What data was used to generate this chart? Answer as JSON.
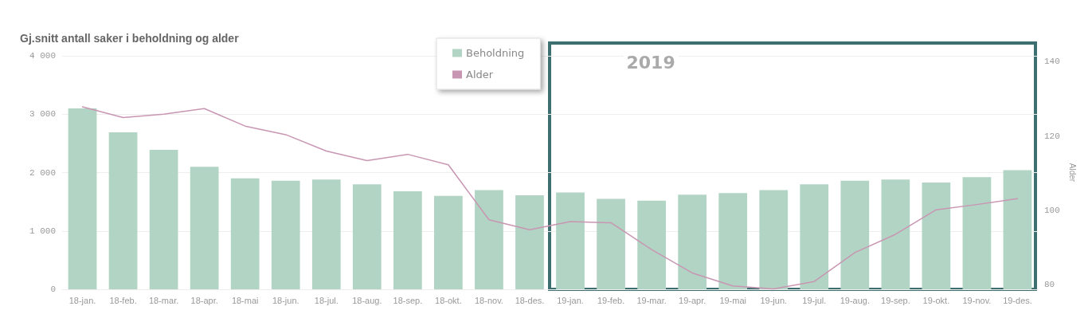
{
  "chart_data": {
    "type": "bar",
    "title": "Gj.snitt antall saker i beholdning og alder",
    "y2label": "Alder",
    "categories": [
      "18-jan.",
      "18-feb.",
      "18-mar.",
      "18-apr.",
      "18-mai",
      "18-jun.",
      "18-jul.",
      "18-aug.",
      "18-sep.",
      "18-okt.",
      "18-nov.",
      "18-des.",
      "19-jan.",
      "19-feb.",
      "19-mar.",
      "19-apr.",
      "19-mai",
      "19-jun.",
      "19-jul.",
      "19-aug.",
      "19-sep.",
      "19-okt.",
      "19-nov.",
      "19-des."
    ],
    "series": [
      {
        "name": "Beholdning",
        "color": "#b2d4c4",
        "values": [
          3100,
          2690,
          2390,
          2100,
          1900,
          1860,
          1880,
          1800,
          1680,
          1600,
          1700,
          1610,
          1660,
          1550,
          1520,
          1620,
          1650,
          1700,
          1800,
          1860,
          1880,
          1830,
          1920,
          2040
        ]
      },
      {
        "name": "Alder",
        "type": "line",
        "axis": "y2",
        "color": "#c896b2",
        "values": [
          127.9,
          125.0,
          125.9,
          127.4,
          122.7,
          120.4,
          116.0,
          113.4,
          115.1,
          112.3,
          97.5,
          94.8,
          97.0,
          96.7,
          89.5,
          83.2,
          79.7,
          78.9,
          80.9,
          88.7,
          93.6,
          100.2,
          101.6,
          103.2
        ]
      }
    ],
    "ylim": [
      0,
      4000
    ],
    "yticks": [
      0,
      {
        "value": 1000,
        "label": "1 000"
      },
      {
        "value": 2000,
        "label": "2 000"
      },
      {
        "value": 3000,
        "label": "3 000"
      },
      {
        "value": 4000,
        "label": "4 000"
      }
    ],
    "y2lim": [
      78.8,
      141.6
    ],
    "y2ticks": [
      80,
      100,
      120,
      140
    ],
    "annotations": [
      "2019"
    ],
    "grid": "y",
    "legend": "top",
    "marker": "none",
    "line_style": "solid"
  }
}
